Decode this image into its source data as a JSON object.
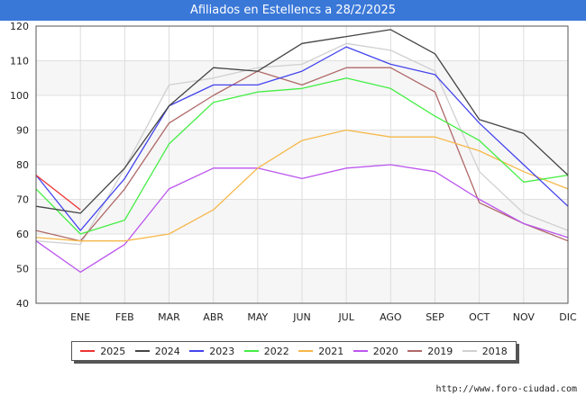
{
  "header": {
    "title": "Afiliados en Estellencs a 28/2/2025"
  },
  "footer": {
    "url": "http://www.foro-ciudad.com"
  },
  "chart_data": {
    "type": "line",
    "title": "Afiliados en Estellencs a 28/2/2025",
    "categories": [
      "",
      "ENE",
      "FEB",
      "MAR",
      "ABR",
      "MAY",
      "JUN",
      "JUL",
      "AGO",
      "SEP",
      "OCT",
      "NOV",
      "DIC"
    ],
    "ylim": [
      40,
      120
    ],
    "yticks": [
      40,
      50,
      60,
      70,
      80,
      90,
      100,
      110,
      120
    ],
    "grid": true,
    "legend_position": "bottom",
    "series": [
      {
        "name": "2018",
        "color": "#d0d0d0",
        "values": [
          58,
          57,
          79,
          103,
          105,
          108,
          109,
          115,
          113,
          107,
          78,
          66,
          61
        ]
      },
      {
        "name": "2019",
        "color": "#b06868",
        "values": [
          61,
          58,
          73,
          92,
          100,
          107,
          103,
          108,
          108,
          101,
          69,
          63,
          58
        ]
      },
      {
        "name": "2020",
        "color": "#bb55ee",
        "values": [
          58,
          49,
          57,
          73,
          79,
          79,
          76,
          79,
          80,
          78,
          70,
          63,
          59
        ]
      },
      {
        "name": "2021",
        "color": "#f6b84a",
        "values": [
          59,
          58,
          58,
          60,
          67,
          79,
          87,
          90,
          88,
          88,
          84,
          78,
          73
        ]
      },
      {
        "name": "2022",
        "color": "#44ee44",
        "values": [
          73,
          60,
          64,
          86,
          98,
          101,
          102,
          105,
          102,
          94,
          87,
          75,
          77
        ]
      },
      {
        "name": "2023",
        "color": "#4444ee",
        "values": [
          77,
          61,
          76,
          97,
          103,
          103,
          107,
          114,
          109,
          106,
          92,
          80,
          68
        ]
      },
      {
        "name": "2024",
        "color": "#444444",
        "values": [
          68,
          66,
          79,
          97,
          108,
          107,
          115,
          117,
          119,
          112,
          93,
          89,
          77
        ]
      },
      {
        "name": "2025",
        "color": "#ee3333",
        "values": [
          77,
          67,
          null,
          null,
          null,
          null,
          null,
          null,
          null,
          null,
          null,
          null,
          null
        ]
      }
    ]
  },
  "legend": [
    {
      "label": "2025",
      "color": "#ee3333"
    },
    {
      "label": "2024",
      "color": "#444444"
    },
    {
      "label": "2023",
      "color": "#4444ee"
    },
    {
      "label": "2022",
      "color": "#44ee44"
    },
    {
      "label": "2021",
      "color": "#f6b84a"
    },
    {
      "label": "2020",
      "color": "#bb55ee"
    },
    {
      "label": "2019",
      "color": "#b06868"
    },
    {
      "label": "2018",
      "color": "#d0d0d0"
    }
  ]
}
